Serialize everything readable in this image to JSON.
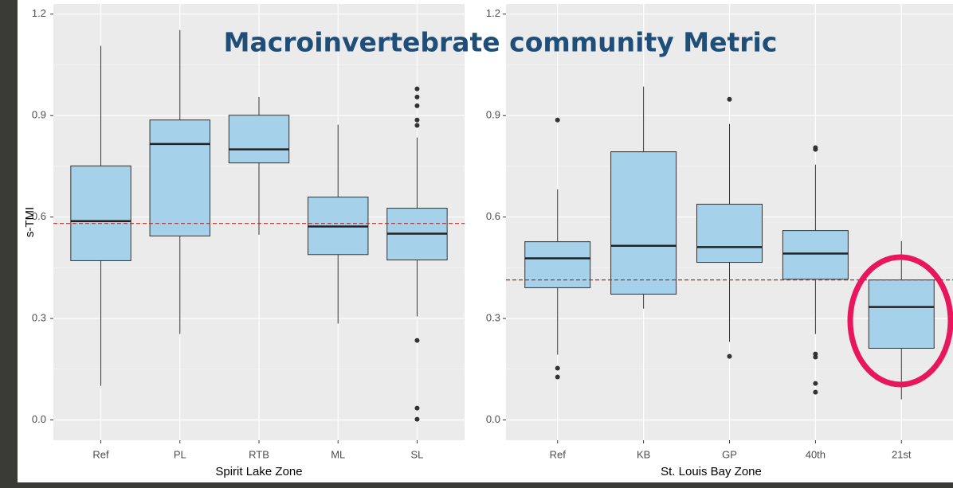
{
  "title": "Macroinvertebrate community Metric",
  "chart_data": [
    {
      "type": "box",
      "xlabel": "Spirit Lake Zone",
      "ylabel": "s-TMI",
      "categories": [
        "Ref",
        "PL",
        "RTB",
        "ML",
        "SL"
      ],
      "whisker_low": [
        0.101,
        0.254,
        0.548,
        0.285,
        0.306
      ],
      "q1": [
        0.471,
        0.544,
        0.76,
        0.489,
        0.473
      ],
      "median": [
        0.588,
        0.816,
        0.8,
        0.572,
        0.551
      ],
      "q3": [
        0.751,
        0.887,
        0.901,
        0.659,
        0.626
      ],
      "whisker_high": [
        1.106,
        1.153,
        0.955,
        0.873,
        0.835
      ],
      "outliers": [
        [],
        [],
        [],
        [],
        [
          0.979,
          0.955,
          0.929,
          0.887,
          0.871,
          0.235,
          0.035,
          0.002
        ]
      ],
      "color": "#a6d1ea",
      "reference_line": {
        "value": 0.581,
        "color": "#cc2222"
      },
      "ylim": [
        -0.06,
        1.23
      ],
      "yticks": [
        {
          "value": 0,
          "label": "0.0"
        },
        0.3,
        0.6,
        0.9,
        1.2
      ],
      "grid": true
    },
    {
      "type": "box",
      "xlabel": "St. Louis Bay Zone",
      "categories": [
        "Ref",
        "KB",
        "GP",
        "40th",
        "21st"
      ],
      "whisker_low": [
        0.193,
        0.329,
        0.231,
        0.254,
        0.061
      ],
      "q1": [
        0.391,
        0.372,
        0.466,
        0.416,
        0.212
      ],
      "median": [
        0.478,
        0.515,
        0.511,
        0.492,
        0.334
      ],
      "q3": [
        0.527,
        0.793,
        0.638,
        0.56,
        0.414
      ],
      "whisker_high": [
        0.682,
        0.986,
        0.875,
        0.755,
        0.529
      ],
      "outliers": [
        [
          0.887,
          0.153,
          0.127
        ],
        [],
        [
          0.948,
          0.188
        ],
        [
          0.805,
          0.8,
          0.195,
          0.186,
          0.108,
          0.082
        ],
        []
      ],
      "color": "#a6d1ea",
      "reference_line": {
        "value": 0.414,
        "color": "#cc2222"
      },
      "ylim": [
        -0.06,
        1.23
      ],
      "yticks": [
        {
          "value": 0,
          "label": "0.0"
        },
        0.3,
        0.6,
        0.9,
        1.2
      ],
      "grid": true
    }
  ]
}
